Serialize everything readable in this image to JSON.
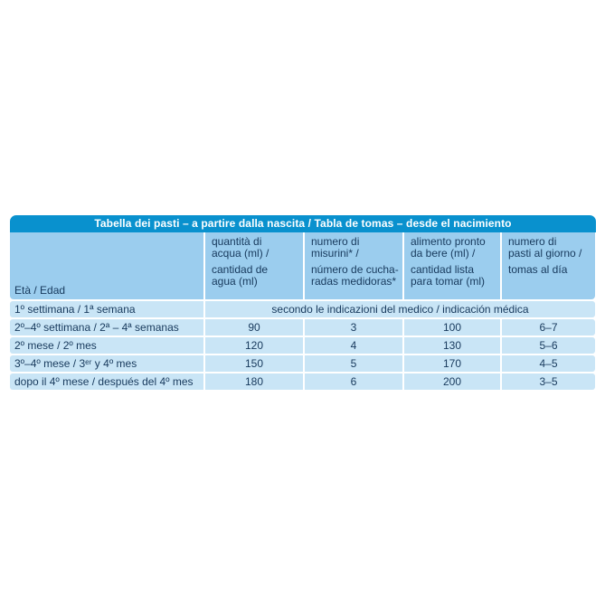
{
  "table": {
    "title": "Tabella dei pasti – a partire dalla nascita / Tabla de tomas – desde el nacimiento",
    "age_header": "Età / Edad",
    "columns": [
      {
        "it": "quantità di\nacqua (ml) /",
        "es": "cantidad de\nagua (ml)"
      },
      {
        "it": "numero di\nmisurini* /",
        "es": "número de cucha-\nradas medidoras*"
      },
      {
        "it": "alimento pronto\nda bere (ml) /",
        "es": "cantidad lista\npara tomar (ml)"
      },
      {
        "it": "numero di\npasti al giorno /",
        "es": "tomas al día"
      }
    ],
    "rows": [
      {
        "age": "1º settimana / 1ª semana",
        "medical_note": "secondo le indicazioni del medico / indicación médica"
      },
      {
        "age": "2º–4º settimana / 2ª – 4ª semanas",
        "water_ml": "90",
        "scoops": "3",
        "ready_ml": "100",
        "meals_per_day": "6–7"
      },
      {
        "age": "2º mese / 2º mes",
        "water_ml": "120",
        "scoops": "4",
        "ready_ml": "130",
        "meals_per_day": "5–6"
      },
      {
        "age": "3º–4º mese / 3ᵉʳ y 4º mes",
        "water_ml": "150",
        "scoops": "5",
        "ready_ml": "170",
        "meals_per_day": "4–5"
      },
      {
        "age": "dopo il 4º mese / después del 4º mes",
        "water_ml": "180",
        "scoops": "6",
        "ready_ml": "200",
        "meals_per_day": "3–5"
      }
    ],
    "colors": {
      "title_bar": "#0991CE",
      "header_bg": "#9BCDEE",
      "row_bg": "#C9E5F6",
      "text": "#17395C",
      "title_text": "#FFFFFF"
    }
  }
}
